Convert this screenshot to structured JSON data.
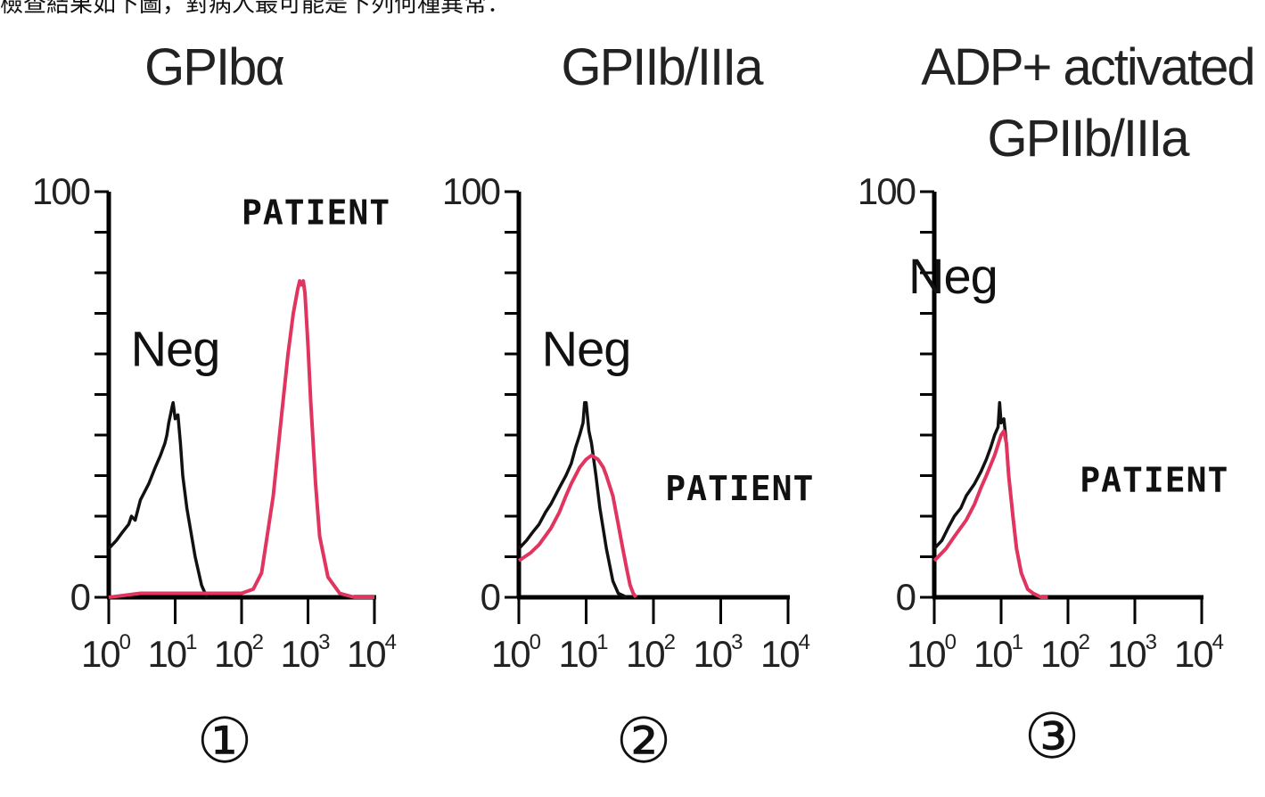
{
  "header": {
    "question_text": "檢查結果如下圖，對病人最可能是下列何種異常："
  },
  "colors": {
    "neg": "#111111",
    "patient": "#e0355f",
    "axis": "#000000"
  },
  "chart_data": [
    {
      "type": "line",
      "panel_number": "①",
      "title_lines": [
        "GPIbα"
      ],
      "x_scale": "log",
      "xlim": [
        1,
        10000
      ],
      "ylim": [
        0,
        100
      ],
      "y_ticks": [
        "0",
        "100"
      ],
      "x_ticks": [
        {
          "base": "10",
          "exp": "0",
          "value": 1
        },
        {
          "base": "10",
          "exp": "1",
          "value": 10
        },
        {
          "base": "10",
          "exp": "2",
          "value": 100
        },
        {
          "base": "10",
          "exp": "3",
          "value": 1000
        },
        {
          "base": "10",
          "exp": "4",
          "value": 10000
        }
      ],
      "annotations": [
        {
          "text": "Neg",
          "style": "sans",
          "x": 10,
          "y": 57
        },
        {
          "text": "PATIENT",
          "style": "mono",
          "x": 100,
          "y": 92
        }
      ],
      "series": [
        {
          "key": "neg",
          "x": [
            1,
            1.3,
            1.6,
            2,
            2.2,
            2.5,
            3,
            4,
            5,
            6,
            7,
            7.5,
            8,
            8.5,
            9,
            9.3,
            10,
            11,
            12,
            13,
            15,
            20,
            25,
            30
          ],
          "y": [
            12,
            14,
            16,
            18,
            20,
            19,
            24,
            28,
            32,
            35,
            38,
            40,
            43,
            45,
            47,
            48,
            44,
            45,
            38,
            30,
            22,
            10,
            3,
            0
          ]
        },
        {
          "key": "patient",
          "x": [
            1,
            3,
            10,
            50,
            100,
            150,
            200,
            300,
            400,
            500,
            600,
            700,
            750,
            800,
            850,
            900,
            1000,
            1100,
            1300,
            1500,
            2000,
            3000,
            5000,
            10000
          ],
          "y": [
            0,
            1,
            1,
            1,
            1,
            2,
            6,
            25,
            45,
            60,
            70,
            76,
            78,
            77,
            78,
            75,
            62,
            48,
            28,
            15,
            5,
            1,
            0,
            0
          ]
        }
      ]
    },
    {
      "type": "line",
      "panel_number": "②",
      "title_lines": [
        "GPIIb/IIIa"
      ],
      "x_scale": "log",
      "xlim": [
        1,
        10000
      ],
      "ylim": [
        0,
        100
      ],
      "y_ticks": [
        "0",
        "100"
      ],
      "x_ticks": [
        {
          "base": "10",
          "exp": "0",
          "value": 1
        },
        {
          "base": "10",
          "exp": "1",
          "value": 10
        },
        {
          "base": "10",
          "exp": "2",
          "value": 100
        },
        {
          "base": "10",
          "exp": "3",
          "value": 1000
        },
        {
          "base": "10",
          "exp": "4",
          "value": 10000
        }
      ],
      "annotations": [
        {
          "text": "Neg",
          "style": "sans",
          "x": 10,
          "y": 57
        },
        {
          "text": "PATIENT",
          "style": "mono",
          "x": 150,
          "y": 24
        }
      ],
      "series": [
        {
          "key": "neg",
          "x": [
            1,
            1.3,
            1.6,
            2,
            2.5,
            3,
            4,
            5,
            6,
            7,
            8,
            9,
            9.5,
            10,
            11,
            12,
            14,
            16,
            20,
            25,
            30,
            40
          ],
          "y": [
            12,
            14,
            16,
            18,
            21,
            23,
            27,
            30,
            33,
            37,
            40,
            43,
            48,
            48,
            41,
            38,
            30,
            22,
            12,
            4,
            1,
            0
          ]
        },
        {
          "key": "patient",
          "x": [
            1,
            1.5,
            2,
            3,
            4,
            5,
            6,
            8,
            10,
            12,
            15,
            18,
            20,
            25,
            30,
            35,
            40,
            45,
            50,
            55
          ],
          "y": [
            9,
            11,
            13,
            17,
            21,
            25,
            28,
            32,
            34,
            35,
            34,
            32,
            30,
            25,
            18,
            12,
            7,
            3,
            1,
            0
          ]
        }
      ]
    },
    {
      "type": "line",
      "panel_number": "③",
      "title_lines": [
        "ADP+ activated",
        "GPIIb/IIIa"
      ],
      "x_scale": "log",
      "xlim": [
        1,
        10000
      ],
      "ylim": [
        0,
        100
      ],
      "y_ticks": [
        "0",
        "100"
      ],
      "x_ticks": [
        {
          "base": "10",
          "exp": "0",
          "value": 1
        },
        {
          "base": "10",
          "exp": "1",
          "value": 10
        },
        {
          "base": "10",
          "exp": "2",
          "value": 100
        },
        {
          "base": "10",
          "exp": "3",
          "value": 1000
        },
        {
          "base": "10",
          "exp": "4",
          "value": 10000
        }
      ],
      "annotations": [
        {
          "text": "Neg",
          "style": "sans",
          "x": 1.9,
          "y": 75
        },
        {
          "text": "PATIENT",
          "style": "mono",
          "x": 150,
          "y": 26
        }
      ],
      "series": [
        {
          "key": "neg",
          "x": [
            1,
            1.3,
            1.6,
            2,
            2.5,
            3,
            4,
            5,
            6,
            7,
            8,
            9,
            9.5,
            10,
            11,
            12,
            13,
            15,
            17,
            20,
            25,
            30,
            40
          ],
          "y": [
            12,
            14,
            17,
            20,
            22,
            25,
            28,
            31,
            34,
            37,
            40,
            42,
            48,
            43,
            44,
            38,
            30,
            20,
            12,
            6,
            2,
            1,
            0
          ]
        },
        {
          "key": "patient",
          "x": [
            1,
            1.5,
            2,
            3,
            4,
            5,
            6,
            8,
            10,
            11,
            12,
            13,
            15,
            17,
            20,
            25,
            30,
            40,
            50
          ],
          "y": [
            9,
            12,
            15,
            19,
            23,
            27,
            30,
            35,
            40,
            41,
            38,
            30,
            20,
            12,
            6,
            2,
            1,
            0,
            0
          ]
        }
      ]
    }
  ]
}
